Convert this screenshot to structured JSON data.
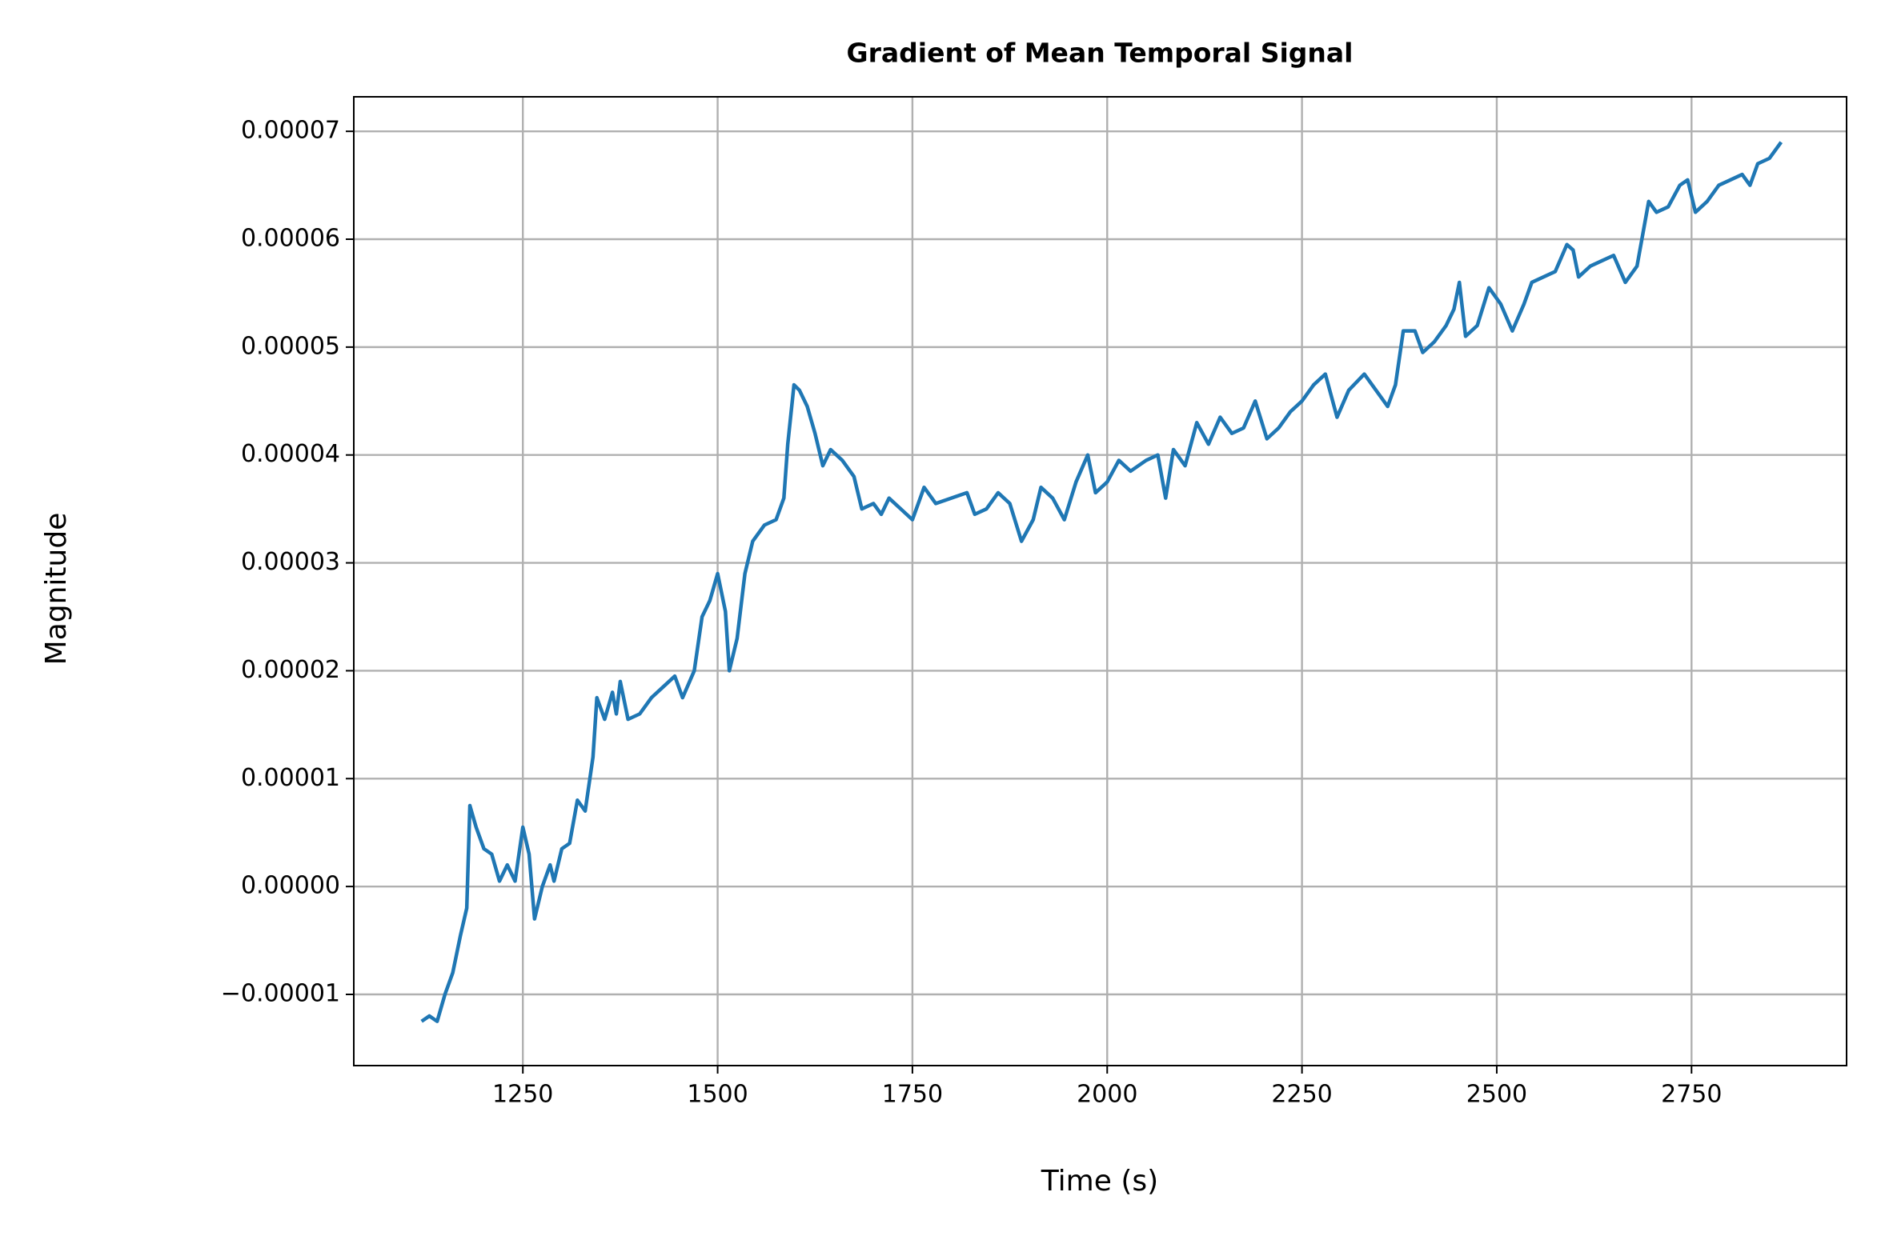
{
  "chart_data": {
    "type": "line",
    "title": "Gradient of Mean Temporal Signal",
    "x_label": "Time (s)",
    "y_label": "Magnitude",
    "grid": true,
    "xlim": [
      1033,
      2949
    ],
    "xticks": [
      1250,
      1500,
      1750,
      2000,
      2250,
      2500,
      2750
    ],
    "ylim": [
      -1.66e-05,
      7.32e-05
    ],
    "yticks": [
      {
        "value": -1e-05,
        "label": "−0.00001"
      },
      {
        "value": 0,
        "label": "0.00000"
      },
      1e-05,
      2e-05,
      3e-05,
      4e-05,
      5e-05,
      6e-05,
      7e-05
    ],
    "series": [
      {
        "color": "#1f77b4",
        "x": [
          1120,
          1130,
          1140,
          1150,
          1160,
          1170,
          1178,
          1182,
          1190,
          1200,
          1210,
          1220,
          1230,
          1240,
          1250,
          1258,
          1265,
          1275,
          1285,
          1290,
          1300,
          1310,
          1320,
          1330,
          1340,
          1345,
          1355,
          1365,
          1370,
          1375,
          1385,
          1400,
          1415,
          1430,
          1445,
          1455,
          1470,
          1480,
          1490,
          1500,
          1510,
          1515,
          1525,
          1535,
          1545,
          1560,
          1575,
          1585,
          1590,
          1598,
          1605,
          1615,
          1625,
          1635,
          1645,
          1660,
          1675,
          1685,
          1700,
          1710,
          1720,
          1735,
          1750,
          1765,
          1780,
          1800,
          1820,
          1830,
          1845,
          1860,
          1875,
          1890,
          1905,
          1915,
          1930,
          1945,
          1960,
          1975,
          1985,
          2000,
          2015,
          2030,
          2050,
          2065,
          2075,
          2085,
          2100,
          2115,
          2130,
          2145,
          2160,
          2175,
          2190,
          2205,
          2220,
          2235,
          2250,
          2265,
          2280,
          2295,
          2310,
          2330,
          2345,
          2360,
          2370,
          2380,
          2395,
          2405,
          2420,
          2435,
          2445,
          2452,
          2460,
          2475,
          2490,
          2505,
          2520,
          2535,
          2545,
          2560,
          2575,
          2590,
          2598,
          2605,
          2620,
          2635,
          2650,
          2665,
          2680,
          2695,
          2705,
          2720,
          2735,
          2745,
          2755,
          2770,
          2785,
          2800,
          2815,
          2825,
          2835,
          2850,
          2865
        ],
        "values": [
          -1.25e-05,
          -1.2e-05,
          -1.25e-05,
          -1e-05,
          -8e-06,
          -4.5e-06,
          -2e-06,
          7.5e-06,
          5.5e-06,
          3.5e-06,
          3e-06,
          5e-07,
          2e-06,
          5e-07,
          5.5e-06,
          3e-06,
          -3e-06,
          0.0,
          2e-06,
          5e-07,
          3.5e-06,
          4e-06,
          8e-06,
          7e-06,
          1.2e-05,
          1.75e-05,
          1.55e-05,
          1.8e-05,
          1.6e-05,
          1.9e-05,
          1.55e-05,
          1.6e-05,
          1.75e-05,
          1.85e-05,
          1.95e-05,
          1.75e-05,
          2e-05,
          2.5e-05,
          2.65e-05,
          2.9e-05,
          2.55e-05,
          2e-05,
          2.3e-05,
          2.9e-05,
          3.2e-05,
          3.35e-05,
          3.4e-05,
          3.6e-05,
          4.1e-05,
          4.65e-05,
          4.6e-05,
          4.45e-05,
          4.2e-05,
          3.9e-05,
          4.05e-05,
          3.95e-05,
          3.8e-05,
          3.5e-05,
          3.55e-05,
          3.45e-05,
          3.6e-05,
          3.5e-05,
          3.4e-05,
          3.7e-05,
          3.55e-05,
          3.6e-05,
          3.65e-05,
          3.45e-05,
          3.5e-05,
          3.65e-05,
          3.55e-05,
          3.2e-05,
          3.4e-05,
          3.7e-05,
          3.6e-05,
          3.4e-05,
          3.75e-05,
          4e-05,
          3.65e-05,
          3.75e-05,
          3.95e-05,
          3.85e-05,
          3.95e-05,
          4e-05,
          3.6e-05,
          4.05e-05,
          3.9e-05,
          4.3e-05,
          4.1e-05,
          4.35e-05,
          4.2e-05,
          4.25e-05,
          4.5e-05,
          4.15e-05,
          4.25e-05,
          4.4e-05,
          4.5e-05,
          4.65e-05,
          4.75e-05,
          4.35e-05,
          4.6e-05,
          4.75e-05,
          4.6e-05,
          4.45e-05,
          4.65e-05,
          5.15e-05,
          5.15e-05,
          4.95e-05,
          5.05e-05,
          5.2e-05,
          5.35e-05,
          5.6e-05,
          5.1e-05,
          5.2e-05,
          5.55e-05,
          5.4e-05,
          5.15e-05,
          5.4e-05,
          5.6e-05,
          5.65e-05,
          5.7e-05,
          5.95e-05,
          5.9e-05,
          5.65e-05,
          5.75e-05,
          5.8e-05,
          5.85e-05,
          5.6e-05,
          5.75e-05,
          6.35e-05,
          6.25e-05,
          6.3e-05,
          6.5e-05,
          6.55e-05,
          6.25e-05,
          6.35e-05,
          6.5e-05,
          6.55e-05,
          6.6e-05,
          6.5e-05,
          6.7e-05,
          6.75e-05,
          6.9e-05
        ]
      }
    ]
  }
}
